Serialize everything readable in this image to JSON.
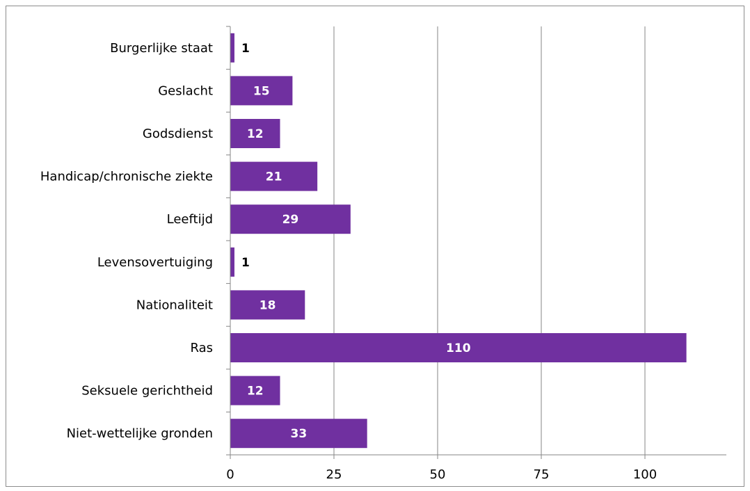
{
  "chart_data": {
    "type": "bar",
    "orientation": "horizontal",
    "categories": [
      "Burgerlijke staat",
      "Geslacht",
      "Godsdienst",
      "Handicap/chronische ziekte",
      "Leeftijd",
      "Levensovertuiging",
      "Nationaliteit",
      "Ras",
      "Seksuele gerichtheid",
      "Niet-wettelijke gronden"
    ],
    "values": [
      1,
      15,
      12,
      21,
      29,
      1,
      18,
      110,
      12,
      33
    ],
    "xlim": [
      0,
      120
    ],
    "xticks": [
      0,
      25,
      50,
      75,
      100
    ],
    "grid": "vertical",
    "legend": "none",
    "bar_color": "#7030a0",
    "label_color_inside": "#ffffff",
    "label_color_outside": "#000000",
    "grid_color": "#868686",
    "title": "",
    "xlabel": "",
    "ylabel": ""
  }
}
